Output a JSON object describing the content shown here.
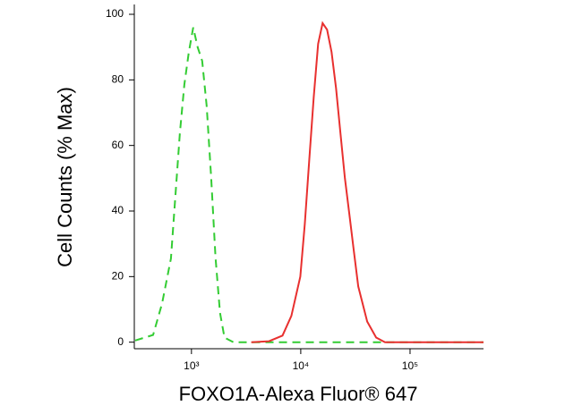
{
  "chart_data": {
    "type": "line",
    "x_label": "FOXO1A-Alexa Fluor® 647",
    "y_label": "Cell Counts (% Max)",
    "x_log_scale": true,
    "xlim": [
      300,
      470000
    ],
    "xticks": [
      {
        "value": 1000,
        "label": "10³"
      },
      {
        "value": 10000,
        "label": "10⁴"
      },
      {
        "value": 100000,
        "label": "10⁵"
      }
    ],
    "ylim": [
      -2,
      103
    ],
    "yticks": [
      0,
      20,
      40,
      60,
      80,
      100
    ],
    "series": [
      {
        "color": "#33cc33",
        "linestyle": "dashed",
        "x": [
          306,
          446,
          538,
          649,
          783,
          861,
          946,
          1038,
          1140,
          1253,
          1377,
          1513,
          1661,
          1825,
          2005,
          2421,
          5130,
          470000
        ],
        "values": [
          0.5,
          2.2,
          11.8,
          25.5,
          63.8,
          78.6,
          88.5,
          96,
          89.9,
          85.8,
          72.1,
          50.4,
          25.8,
          9.0,
          1.4,
          0,
          0,
          0
        ]
      },
      {
        "color": "#e8302f",
        "linestyle": "solid",
        "x": [
          3524,
          5130,
          6810,
          8200,
          9910,
          10890,
          11970,
          13140,
          14430,
          15850,
          17410,
          19130,
          21010,
          23080,
          25350,
          27840,
          30580,
          33590,
          40540,
          48930,
          59050,
          470000
        ],
        "values": [
          0,
          0.3,
          2,
          8,
          20,
          36,
          55.6,
          74.8,
          91,
          97.3,
          95.3,
          88.5,
          77.5,
          63.8,
          50,
          39,
          28,
          17,
          6.3,
          1.4,
          0,
          0
        ]
      }
    ]
  }
}
